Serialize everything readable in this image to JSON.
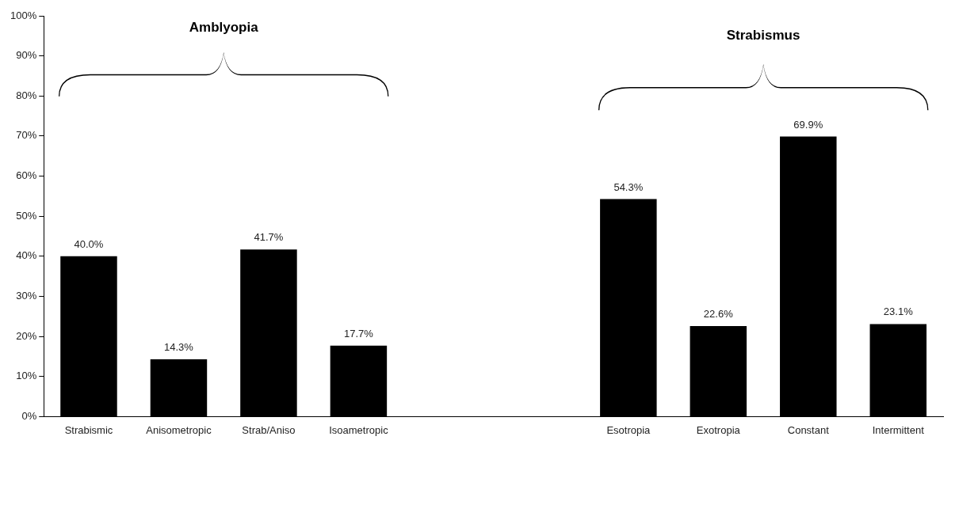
{
  "chart_data": {
    "type": "bar",
    "categories": [
      "Strabismic",
      "Anisometropic",
      "Strab/Aniso",
      "Isoametropic",
      null,
      null,
      "Esotropia",
      "Exotropia",
      "Constant",
      "Intermittent"
    ],
    "values": [
      40.0,
      14.3,
      41.7,
      17.7,
      null,
      null,
      54.3,
      22.6,
      69.9,
      23.1
    ],
    "value_labels": [
      "40.0%",
      "14.3%",
      "41.7%",
      "17.7%",
      null,
      null,
      "54.3%",
      "22.6%",
      "69.9%",
      "23.1%"
    ],
    "color": "#000000",
    "ylim": [
      0,
      100
    ],
    "yticks": [
      {
        "value": 0,
        "label": "0%"
      },
      {
        "value": 10,
        "label": "10%"
      },
      {
        "value": 20,
        "label": "20%"
      },
      {
        "value": 30,
        "label": "30%"
      },
      {
        "value": 40,
        "label": "40%"
      },
      {
        "value": 50,
        "label": "50%"
      },
      {
        "value": 60,
        "label": "60%"
      },
      {
        "value": 70,
        "label": "70%"
      },
      {
        "value": 80,
        "label": "80%"
      },
      {
        "value": 90,
        "label": "90%"
      },
      {
        "value": 100,
        "label": "100%"
      }
    ],
    "annotations": [
      "Amblyopia",
      "Strabismus"
    ],
    "grid": false,
    "legend": false
  }
}
